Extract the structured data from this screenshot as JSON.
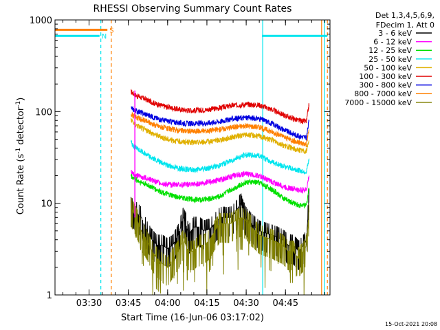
{
  "chart_data": {
    "type": "line",
    "title": "RHESSI Observing Summary Count Rates",
    "xlabel": "Start Time (16-Jun-06 03:17:02)",
    "ylabel_main": "Count Rate (s",
    "ylabel_sup1": "-1",
    "ylabel_mid": " detector",
    "ylabel_sup2": "-1",
    "ylabel_end": ")",
    "yscale": "log",
    "ylim": [
      1,
      1000
    ],
    "xlim_minutes": [
      197,
      302
    ],
    "x_ticks": [
      {
        "minute": 210,
        "label": "03:30"
      },
      {
        "minute": 225,
        "label": "03:45"
      },
      {
        "minute": 240,
        "label": "04:00"
      },
      {
        "minute": 255,
        "label": "04:15"
      },
      {
        "minute": 270,
        "label": "04:30"
      },
      {
        "minute": 285,
        "label": "04:45"
      }
    ],
    "y_ticks": [
      {
        "value": 1,
        "label": "1"
      },
      {
        "value": 10,
        "label": "10"
      },
      {
        "value": 100,
        "label": "100"
      },
      {
        "value": 1000,
        "label": "1000"
      }
    ],
    "legend": {
      "header1": "Det 1,3,4,5,6,9,",
      "header2": "FDecim 1, Att 0",
      "entries": [
        {
          "label": "3 - 6 keV",
          "color": "#000000"
        },
        {
          "label": "6 - 12 keV",
          "color": "#ff00ff"
        },
        {
          "label": "12 - 25 keV",
          "color": "#00e000"
        },
        {
          "label": "25 - 50 keV",
          "color": "#00e5ee"
        },
        {
          "label": "50 - 100 keV",
          "color": "#e0b000"
        },
        {
          "label": "100 - 300 keV",
          "color": "#e00000"
        },
        {
          "label": "300 - 800 keV",
          "color": "#0000e0"
        },
        {
          "label": "800 - 7000 keV",
          "color": "#ff8000"
        },
        {
          "label": "7000 - 15000 keV",
          "color": "#808000"
        }
      ]
    },
    "series": [
      {
        "name": "100 - 300 keV",
        "color": "#e00000",
        "points": [
          [
            226,
            165
          ],
          [
            228,
            150
          ],
          [
            232,
            135
          ],
          [
            236,
            120
          ],
          [
            240,
            112
          ],
          [
            245,
            105
          ],
          [
            250,
            103
          ],
          [
            255,
            105
          ],
          [
            260,
            110
          ],
          [
            265,
            117
          ],
          [
            270,
            120
          ],
          [
            275,
            118
          ],
          [
            280,
            105
          ],
          [
            285,
            90
          ],
          [
            290,
            80
          ],
          [
            293,
            78
          ],
          [
            294,
            120
          ]
        ]
      },
      {
        "name": "300 - 800 keV",
        "color": "#0000e0",
        "points": [
          [
            226,
            110
          ],
          [
            228,
            102
          ],
          [
            232,
            93
          ],
          [
            236,
            84
          ],
          [
            240,
            79
          ],
          [
            245,
            75
          ],
          [
            250,
            74
          ],
          [
            255,
            75
          ],
          [
            260,
            78
          ],
          [
            265,
            84
          ],
          [
            270,
            86
          ],
          [
            275,
            84
          ],
          [
            280,
            74
          ],
          [
            285,
            62
          ],
          [
            290,
            54
          ],
          [
            293,
            52
          ],
          [
            294,
            80
          ]
        ]
      },
      {
        "name": "800 - 7000 keV",
        "color": "#ff8000",
        "points": [
          [
            226,
            95
          ],
          [
            228,
            87
          ],
          [
            232,
            78
          ],
          [
            236,
            70
          ],
          [
            240,
            65
          ],
          [
            245,
            62
          ],
          [
            250,
            61
          ],
          [
            255,
            62
          ],
          [
            260,
            64
          ],
          [
            265,
            68
          ],
          [
            270,
            70
          ],
          [
            275,
            68
          ],
          [
            280,
            60
          ],
          [
            285,
            52
          ],
          [
            290,
            46
          ],
          [
            293,
            44
          ],
          [
            294,
            65
          ]
        ]
      },
      {
        "name": "50 - 100 keV",
        "color": "#e0b000",
        "points": [
          [
            226,
            80
          ],
          [
            228,
            72
          ],
          [
            232,
            62
          ],
          [
            236,
            55
          ],
          [
            240,
            50
          ],
          [
            245,
            47
          ],
          [
            250,
            46
          ],
          [
            255,
            47
          ],
          [
            260,
            49
          ],
          [
            265,
            53
          ],
          [
            270,
            56
          ],
          [
            275,
            54
          ],
          [
            280,
            49
          ],
          [
            285,
            42
          ],
          [
            290,
            38
          ],
          [
            293,
            37
          ],
          [
            294,
            50
          ]
        ]
      },
      {
        "name": "25 - 50 keV",
        "color": "#00e5ee",
        "points": [
          [
            226,
            45
          ],
          [
            228,
            40
          ],
          [
            232,
            34
          ],
          [
            236,
            29
          ],
          [
            240,
            26
          ],
          [
            245,
            24
          ],
          [
            250,
            23
          ],
          [
            255,
            24
          ],
          [
            260,
            26
          ],
          [
            265,
            30
          ],
          [
            270,
            34
          ],
          [
            275,
            33
          ],
          [
            280,
            28
          ],
          [
            285,
            25
          ],
          [
            290,
            23
          ],
          [
            293,
            22
          ],
          [
            294,
            30
          ]
        ]
      },
      {
        "name": "6 - 12 keV",
        "color": "#ff00ff",
        "points": [
          [
            226,
            22
          ],
          [
            228,
            20
          ],
          [
            232,
            19
          ],
          [
            236,
            17
          ],
          [
            240,
            16
          ],
          [
            245,
            16
          ],
          [
            250,
            16
          ],
          [
            255,
            17
          ],
          [
            260,
            18
          ],
          [
            265,
            20
          ],
          [
            270,
            21
          ],
          [
            275,
            20
          ],
          [
            280,
            17
          ],
          [
            285,
            15
          ],
          [
            290,
            14
          ],
          [
            293,
            14
          ],
          [
            294,
            20
          ]
        ]
      },
      {
        "name": "12 - 25 keV",
        "color": "#00e000",
        "points": [
          [
            226,
            20
          ],
          [
            228,
            18
          ],
          [
            232,
            16
          ],
          [
            236,
            14
          ],
          [
            240,
            12.5
          ],
          [
            245,
            11.5
          ],
          [
            250,
            11
          ],
          [
            255,
            11
          ],
          [
            260,
            12
          ],
          [
            265,
            14.5
          ],
          [
            270,
            17
          ],
          [
            275,
            17
          ],
          [
            280,
            14
          ],
          [
            285,
            11
          ],
          [
            290,
            9.5
          ],
          [
            293,
            9.5
          ],
          [
            294,
            15
          ]
        ]
      },
      {
        "name": "3 - 6 keV",
        "color": "#000000",
        "points": [
          [
            226,
            9
          ],
          [
            228,
            8
          ],
          [
            230,
            7
          ],
          [
            232,
            5
          ],
          [
            234,
            4
          ],
          [
            236,
            3.5
          ],
          [
            238,
            3.5
          ],
          [
            240,
            3.2
          ],
          [
            242,
            3.5
          ],
          [
            244,
            4.5
          ],
          [
            245,
            5.5
          ],
          [
            246,
            7
          ],
          [
            247,
            6
          ],
          [
            248,
            4.5
          ],
          [
            250,
            5.5
          ],
          [
            252,
            5.5
          ],
          [
            254,
            5
          ],
          [
            256,
            5.2
          ],
          [
            258,
            6
          ],
          [
            260,
            7
          ],
          [
            262,
            7
          ],
          [
            264,
            7
          ],
          [
            266,
            8
          ],
          [
            268,
            10
          ],
          [
            269,
            8
          ],
          [
            270,
            7
          ],
          [
            272,
            6
          ],
          [
            275,
            5
          ],
          [
            280,
            4.5
          ],
          [
            284,
            4
          ],
          [
            286,
            3.5
          ],
          [
            288,
            3.5
          ],
          [
            290,
            3
          ],
          [
            292,
            3.5
          ],
          [
            293,
            4
          ],
          [
            294,
            11
          ]
        ]
      },
      {
        "name": "7000 - 15000 keV",
        "color": "#808000",
        "points": [
          [
            226,
            9
          ],
          [
            228,
            7
          ],
          [
            230,
            5
          ],
          [
            232,
            4
          ],
          [
            234,
            3
          ],
          [
            236,
            2.5
          ],
          [
            238,
            2.2
          ],
          [
            240,
            2
          ],
          [
            242,
            2.5
          ],
          [
            244,
            3
          ],
          [
            245,
            3.5
          ],
          [
            246,
            4
          ],
          [
            248,
            3
          ],
          [
            250,
            3
          ],
          [
            252,
            3.5
          ],
          [
            254,
            3.5
          ],
          [
            256,
            4
          ],
          [
            258,
            5
          ],
          [
            260,
            6
          ],
          [
            262,
            6
          ],
          [
            264,
            6
          ],
          [
            266,
            6.5
          ],
          [
            268,
            7
          ],
          [
            270,
            6.5
          ],
          [
            272,
            5.5
          ],
          [
            275,
            4.5
          ],
          [
            280,
            4
          ],
          [
            284,
            3.5
          ],
          [
            286,
            3
          ],
          [
            288,
            3
          ],
          [
            290,
            2.5
          ],
          [
            292,
            3
          ],
          [
            293,
            3.5
          ],
          [
            294,
            8
          ]
        ]
      }
    ],
    "spike": {
      "minute": 227.5,
      "y_high": 170,
      "y_low": 7,
      "color": "#ff00ff"
    },
    "markers": [
      {
        "label": "S",
        "color": "#ff8000",
        "y": 780,
        "x_start": 197,
        "x_end": 217
      },
      {
        "label": "N",
        "color": "#00e5ee",
        "y": 670,
        "x_start": 197,
        "x_end": 214
      }
    ],
    "bar_segments": [
      {
        "color": "#00e5ee",
        "y": 670,
        "x_start": 276,
        "x_end": 301
      }
    ],
    "vlines": [
      {
        "minute": 214.5,
        "color": "#00e5ee",
        "dashed": true
      },
      {
        "minute": 218.5,
        "color": "#ff8000",
        "dashed": true
      },
      {
        "minute": 276.3,
        "color": "#00e5ee",
        "dashed": false
      },
      {
        "minute": 298.8,
        "color": "#ff8000",
        "dashed": false
      },
      {
        "minute": 299.8,
        "color": "#00e5ee",
        "dashed": false
      },
      {
        "minute": 301.0,
        "color": "#ff8000",
        "dashed": true
      }
    ]
  },
  "footer": {
    "timestamp": "15-Oct-2021 20:08"
  }
}
